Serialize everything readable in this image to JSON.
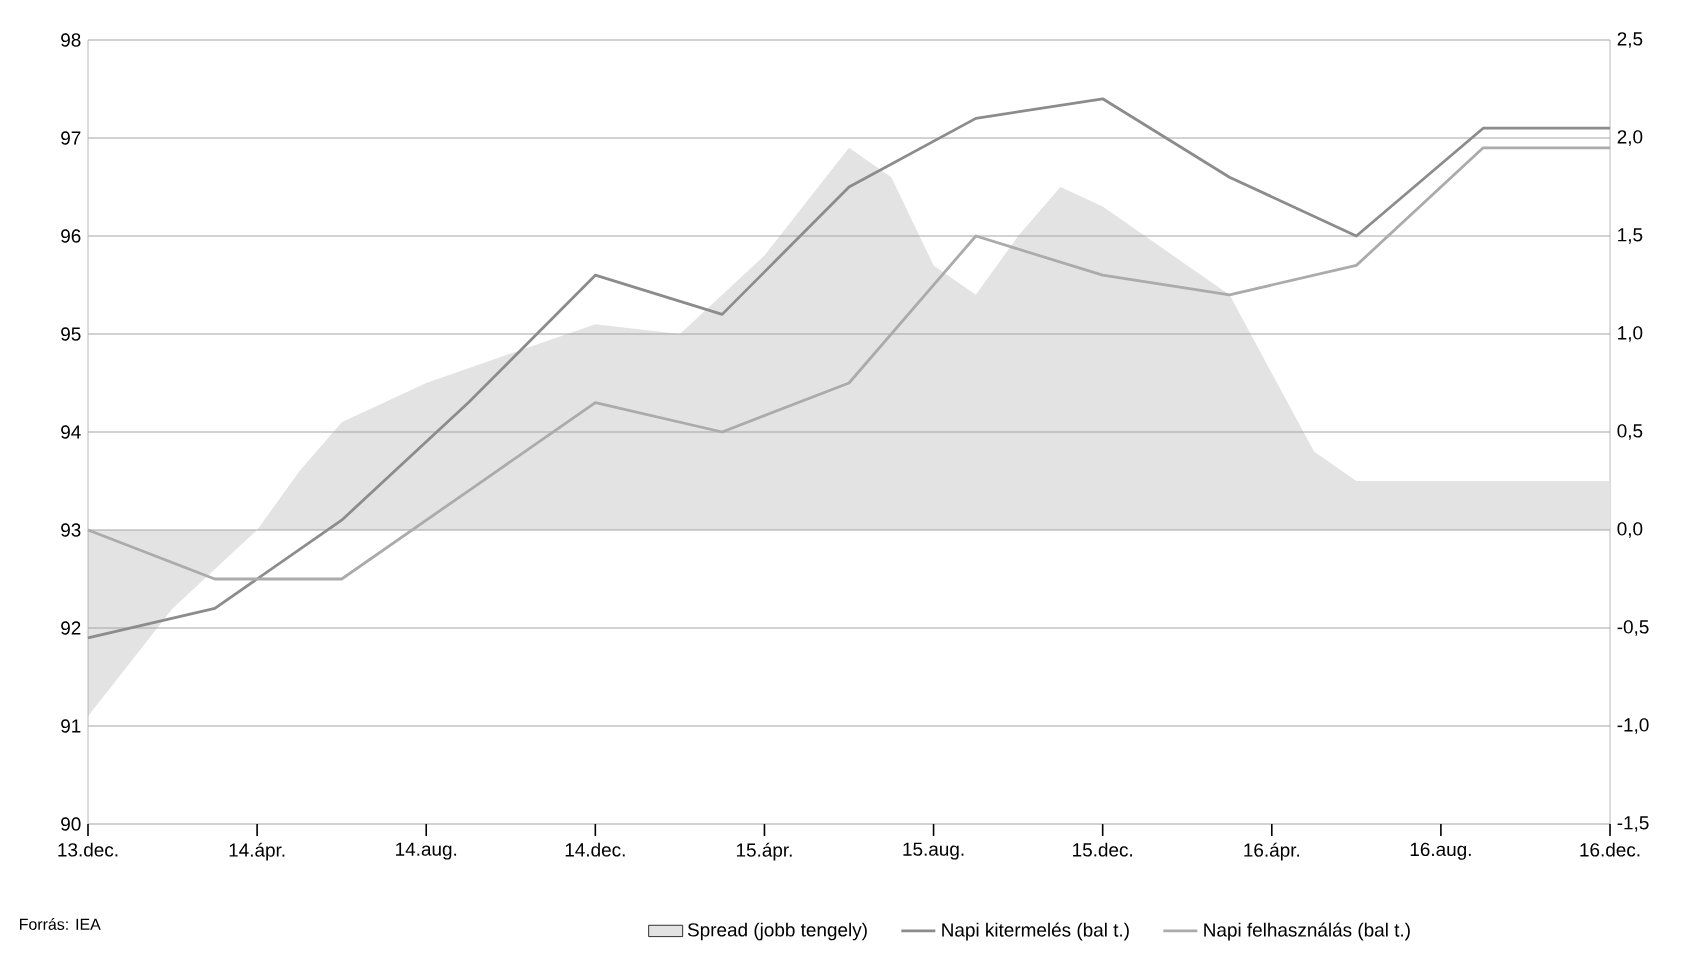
{
  "chart_data": {
    "type": "line",
    "x": [
      "2013-12",
      "2014-03",
      "2014-06",
      "2014-09",
      "2014-12",
      "2015-03",
      "2015-06",
      "2015-09",
      "2015-12",
      "2016-03",
      "2016-06",
      "2016-09",
      "2016-12"
    ],
    "series": [
      {
        "name": "Spread (jobb tengely)",
        "type": "area",
        "axis": "y2",
        "color": "#e3e3e3",
        "x": [
          "2013-12",
          "2014-02",
          "2014-04",
          "2014-05",
          "2014-06",
          "2014-08",
          "2014-10",
          "2014-12",
          "2015-02",
          "2015-04",
          "2015-06",
          "2015-07",
          "2015-08",
          "2015-09",
          "2015-10",
          "2015-11",
          "2015-12",
          "2016-02",
          "2016-03",
          "2016-04",
          "2016-05",
          "2016-06",
          "2016-12"
        ],
        "values": [
          -0.95,
          -0.4,
          0.0,
          0.3,
          0.55,
          0.75,
          0.9,
          1.05,
          1.0,
          1.4,
          1.95,
          1.8,
          1.35,
          1.2,
          1.5,
          1.75,
          1.65,
          1.35,
          1.2,
          0.8,
          0.4,
          0.25,
          0.25
        ]
      },
      {
        "name": "Napi kitermelés (bal t.)",
        "color": "#8c8c8c",
        "values": [
          91.9,
          92.2,
          93.1,
          94.3,
          95.6,
          95.2,
          96.5,
          97.2,
          97.4,
          96.6,
          96.0,
          97.1,
          97.1
        ]
      },
      {
        "name": "Napi felhasználás (bal t.)",
        "color": "#ababab",
        "values": [
          93.0,
          92.5,
          92.5,
          93.4,
          94.3,
          94.0,
          94.5,
          96.0,
          95.6,
          95.4,
          95.7,
          96.9,
          96.9
        ]
      }
    ],
    "xlim": [
      "2013-12",
      "2016-12"
    ],
    "xticks": [
      {
        "value": "2013-12",
        "label": "13.dec."
      },
      {
        "value": "2014-04",
        "label": "14.ápr."
      },
      {
        "value": "2014-08",
        "label": "14.aug."
      },
      {
        "value": "2014-12",
        "label": "14.dec."
      },
      {
        "value": "2015-04",
        "label": "15.ápr."
      },
      {
        "value": "2015-08",
        "label": "15.aug."
      },
      {
        "value": "2015-12",
        "label": "15.dec."
      },
      {
        "value": "2016-04",
        "label": "16.ápr."
      },
      {
        "value": "2016-08",
        "label": "16.aug."
      },
      {
        "value": "2016-12",
        "label": "16.dec."
      }
    ],
    "ylim": [
      90,
      98
    ],
    "yticks": [
      90,
      91,
      92,
      93,
      94,
      95,
      96,
      97,
      98
    ],
    "y2lim": [
      -1.5,
      2.5
    ],
    "y2ticks": [
      {
        "value": -1.5,
        "label": "-1,5"
      },
      {
        "value": -1.0,
        "label": "-1,0"
      },
      {
        "value": -0.5,
        "label": "-0,5"
      },
      {
        "value": 0.0,
        "label": "0,0"
      },
      {
        "value": 0.5,
        "label": "0,5"
      },
      {
        "value": 1.0,
        "label": "1,0"
      },
      {
        "value": 1.5,
        "label": "1,5"
      },
      {
        "value": 2.0,
        "label": "2,0"
      },
      {
        "value": 2.5,
        "label": "2,5"
      }
    ],
    "grid": "y",
    "legend": "bottom",
    "annotations": [
      "Forrás: IEA"
    ]
  }
}
